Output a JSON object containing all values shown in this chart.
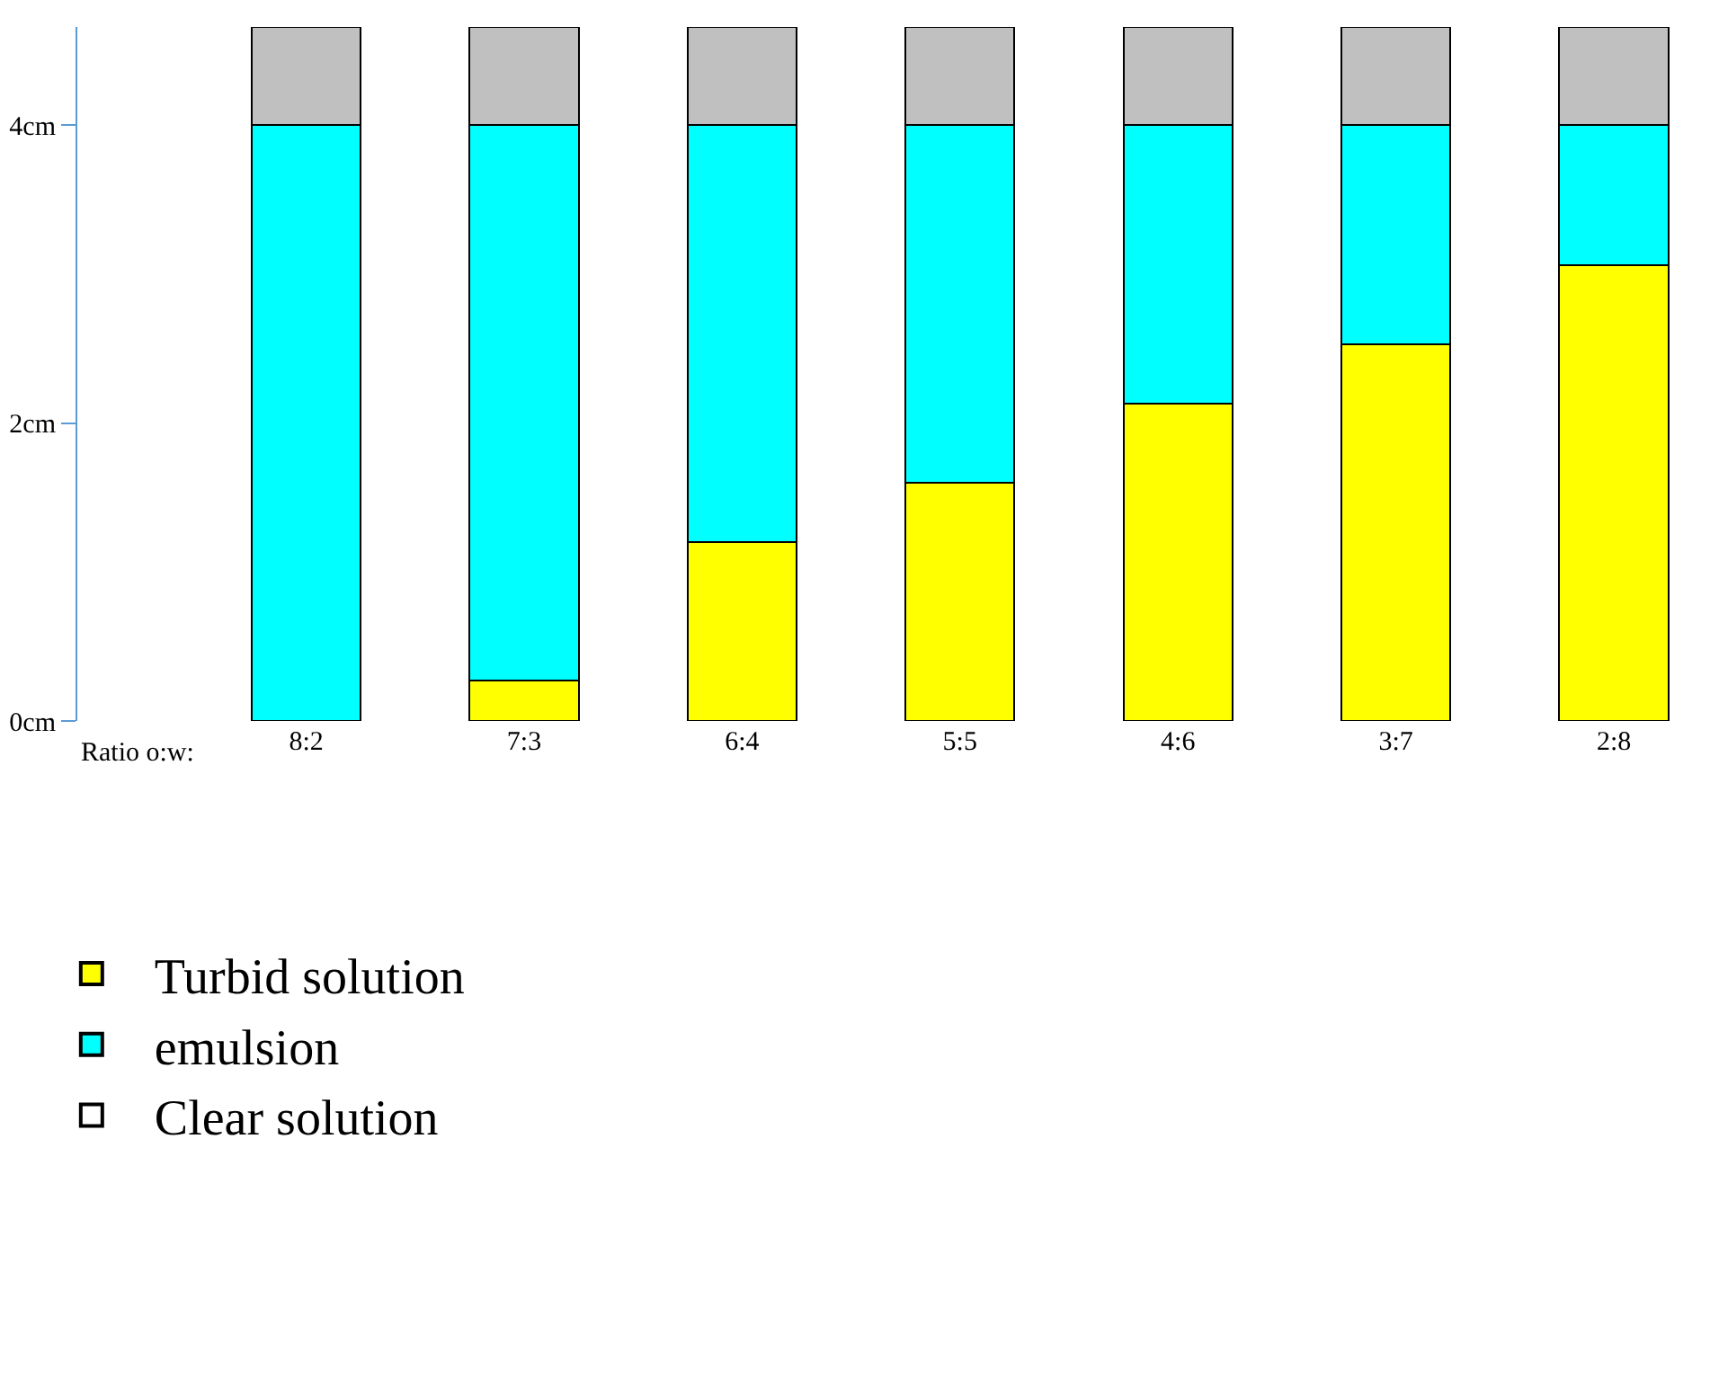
{
  "chart_data": {
    "type": "bar",
    "stacked": true,
    "categories": [
      "8:2",
      "7:3",
      "6:4",
      "5:5",
      "4:6",
      "3:7",
      "2:8"
    ],
    "series": [
      {
        "name": "Turbid solution",
        "color": "#ffff00",
        "values": [
          0,
          0.27,
          1.2,
          1.6,
          2.13,
          2.53,
          3.06
        ]
      },
      {
        "name": "emulsion",
        "color": "#00ffff",
        "values": [
          4,
          3.73,
          2.8,
          2.4,
          1.87,
          1.47,
          0.94
        ]
      },
      {
        "color": "#c0c0c0",
        "values": [
          0.66,
          0.66,
          0.66,
          0.66,
          0.66,
          0.66,
          0.66
        ]
      },
      {
        "name": "Clear solution",
        "color": "#ffffff",
        "values": [
          null,
          null,
          null,
          null,
          null,
          null,
          null
        ]
      }
    ],
    "ylim": [
      0,
      4.66
    ],
    "yticks": [
      {
        "value": 0,
        "label": "0cm"
      },
      {
        "value": 2,
        "label": "2cm"
      },
      {
        "value": 4,
        "label": "4cm"
      }
    ],
    "annotations": [
      "Ratio o:w:"
    ],
    "legend": "bottom left"
  }
}
